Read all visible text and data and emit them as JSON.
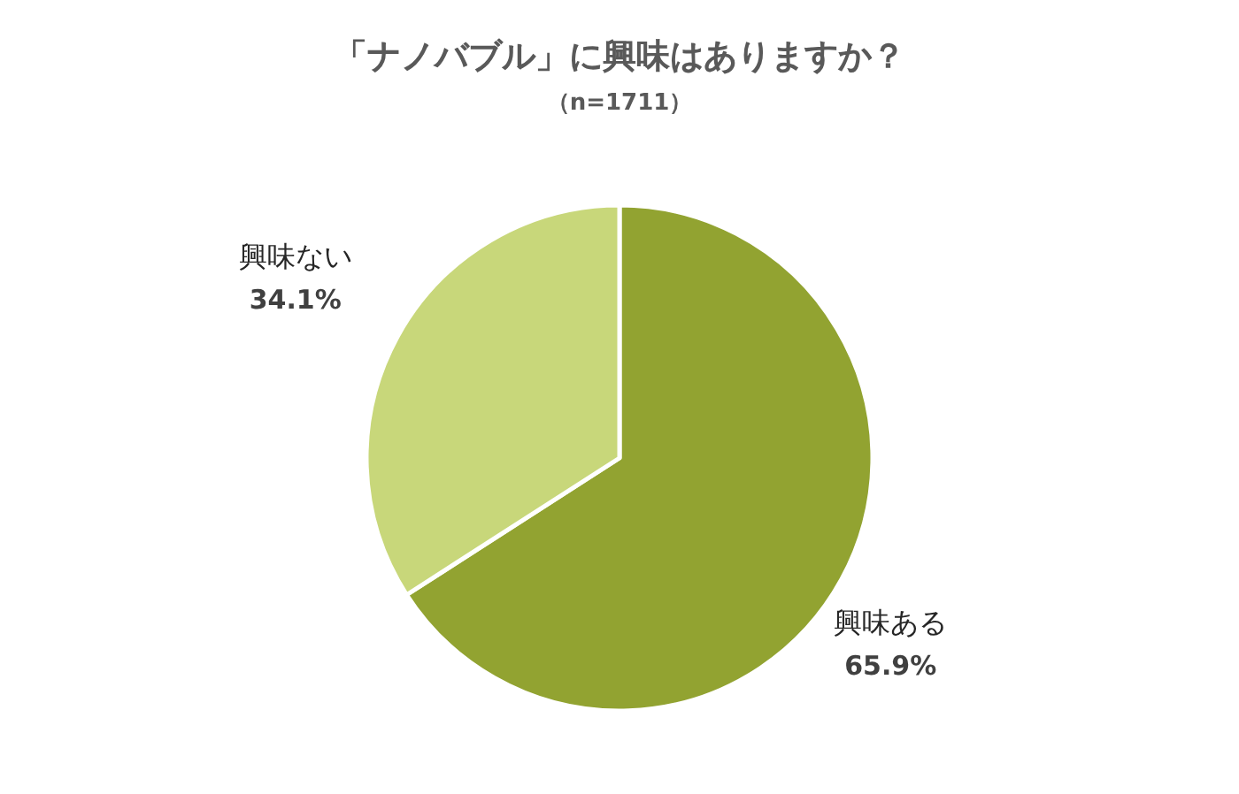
{
  "chart_data": {
    "type": "pie",
    "title": "「ナノバブル」に興味はありますか？",
    "subtitle": "（n=1711）",
    "categories": [
      "興味ある",
      "興味ない"
    ],
    "values": [
      65.9,
      34.1
    ],
    "colors": [
      "#92a331",
      "#c8d77a"
    ],
    "value_labels": [
      "65.9%",
      "34.1%"
    ]
  }
}
